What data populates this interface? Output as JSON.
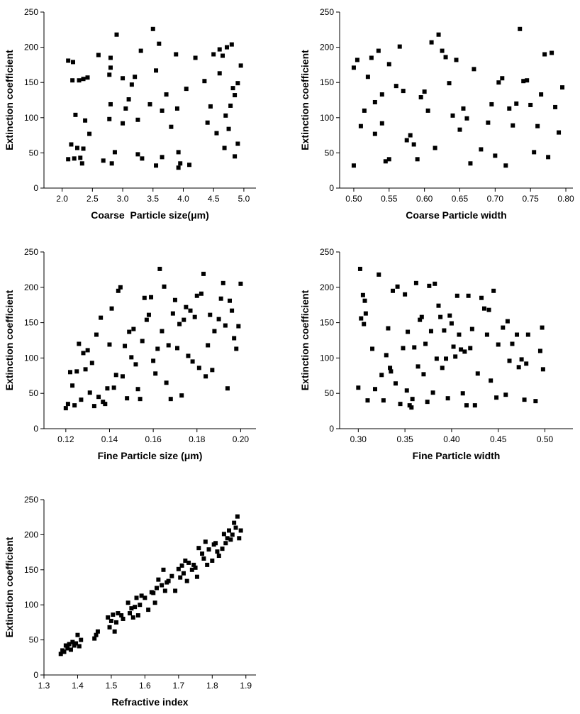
{
  "chart_data": [
    {
      "type": "scatter",
      "xlabel": "Coarse  Particle size(μm)",
      "ylabel": "Extinction coefficient",
      "color": "#000000",
      "xlim": [
        1.7,
        5.2
      ],
      "ylim": [
        0,
        250
      ],
      "xticks": [
        {
          "value": 2,
          "label": "2.0"
        },
        2.5,
        {
          "value": 3,
          "label": "3.0"
        },
        3.5,
        {
          "value": 4,
          "label": "4.0"
        },
        4.5,
        {
          "value": 5,
          "label": "5.0"
        }
      ],
      "yticks": [
        0,
        50,
        100,
        150,
        200,
        250
      ],
      "x": [
        2.1,
        2.1,
        2.15,
        2.17,
        2.18,
        2.2,
        2.22,
        2.25,
        2.28,
        2.3,
        2.33,
        2.35,
        2.35,
        2.38,
        2.42,
        2.45,
        2.6,
        2.68,
        2.78,
        2.78,
        2.8,
        2.8,
        2.8,
        2.82,
        2.87,
        2.9,
        3.0,
        3.0,
        3.05,
        3.1,
        3.15,
        3.2,
        3.25,
        3.25,
        3.3,
        3.32,
        3.45,
        3.5,
        3.55,
        3.55,
        3.6,
        3.65,
        3.65,
        3.72,
        3.8,
        3.88,
        3.9,
        3.92,
        3.92,
        3.95,
        4.05,
        4.1,
        4.2,
        4.35,
        4.4,
        4.45,
        4.5,
        4.55,
        4.6,
        4.6,
        4.65,
        4.68,
        4.7,
        4.72,
        4.75,
        4.78,
        4.8,
        4.82,
        4.85,
        4.85,
        4.9,
        4.9,
        4.95
      ],
      "values": [
        181,
        41,
        62,
        153,
        179,
        42,
        104,
        57,
        153,
        43,
        35,
        56,
        155,
        96,
        157,
        77,
        189,
        39,
        98,
        161,
        185,
        119,
        171,
        35,
        51,
        218,
        92,
        156,
        113,
        126,
        147,
        158,
        97,
        48,
        195,
        42,
        119,
        226,
        167,
        32,
        205,
        110,
        44,
        133,
        87,
        190,
        113,
        51,
        29,
        35,
        141,
        33,
        185,
        152,
        93,
        116,
        190,
        78,
        163,
        197,
        188,
        57,
        103,
        200,
        84,
        117,
        204,
        142,
        45,
        132,
        149,
        63,
        174
      ]
    },
    {
      "type": "scatter",
      "xlabel": "Coarse Particle width",
      "ylabel": "Extinction coefficient",
      "color": "#000000",
      "xlim": [
        0.48,
        0.81
      ],
      "ylim": [
        0,
        250
      ],
      "xticks": [
        {
          "value": 0.5,
          "label": "0.50"
        },
        0.55,
        {
          "value": 0.6,
          "label": "0.60"
        },
        0.65,
        {
          "value": 0.7,
          "label": "0.70"
        },
        0.75,
        {
          "value": 0.8,
          "label": "0.80"
        }
      ],
      "yticks": [
        0,
        50,
        100,
        150,
        200,
        250
      ],
      "x": [
        0.5,
        0.5,
        0.505,
        0.51,
        0.515,
        0.52,
        0.525,
        0.53,
        0.53,
        0.535,
        0.54,
        0.54,
        0.545,
        0.55,
        0.55,
        0.56,
        0.565,
        0.57,
        0.575,
        0.58,
        0.585,
        0.59,
        0.595,
        0.6,
        0.605,
        0.61,
        0.615,
        0.62,
        0.625,
        0.63,
        0.635,
        0.64,
        0.645,
        0.65,
        0.655,
        0.66,
        0.665,
        0.67,
        0.68,
        0.69,
        0.695,
        0.7,
        0.705,
        0.71,
        0.715,
        0.72,
        0.725,
        0.73,
        0.735,
        0.74,
        0.745,
        0.75,
        0.755,
        0.76,
        0.765,
        0.77,
        0.775,
        0.78,
        0.785,
        0.79,
        0.795
      ],
      "values": [
        32,
        171,
        182,
        88,
        110,
        158,
        185,
        122,
        77,
        195,
        92,
        133,
        38,
        176,
        41,
        145,
        201,
        138,
        68,
        75,
        62,
        41,
        129,
        137,
        110,
        207,
        57,
        218,
        195,
        186,
        149,
        103,
        182,
        83,
        113,
        99,
        35,
        169,
        55,
        93,
        119,
        46,
        150,
        156,
        32,
        113,
        89,
        120,
        226,
        152,
        153,
        118,
        51,
        88,
        133,
        190,
        44,
        192,
        115,
        79,
        143
      ]
    },
    {
      "type": "scatter",
      "xlabel": "Fine Particle size (μm)",
      "ylabel": "Extinction coefficient",
      "color": "#000000",
      "xlim": [
        0.11,
        0.207
      ],
      "ylim": [
        0,
        250
      ],
      "xticks": [
        0.12,
        0.14,
        0.16,
        0.18,
        {
          "value": 0.2,
          "label": "0.20"
        }
      ],
      "yticks": [
        0,
        50,
        100,
        150,
        200,
        250
      ],
      "x": [
        0.12,
        0.121,
        0.122,
        0.123,
        0.124,
        0.125,
        0.126,
        0.127,
        0.128,
        0.129,
        0.13,
        0.131,
        0.132,
        0.133,
        0.134,
        0.135,
        0.136,
        0.137,
        0.138,
        0.139,
        0.14,
        0.141,
        0.142,
        0.143,
        0.144,
        0.145,
        0.146,
        0.147,
        0.148,
        0.149,
        0.15,
        0.151,
        0.152,
        0.153,
        0.154,
        0.155,
        0.156,
        0.157,
        0.158,
        0.159,
        0.16,
        0.161,
        0.162,
        0.163,
        0.164,
        0.165,
        0.166,
        0.167,
        0.168,
        0.169,
        0.17,
        0.171,
        0.172,
        0.173,
        0.174,
        0.175,
        0.176,
        0.177,
        0.178,
        0.179,
        0.18,
        0.181,
        0.182,
        0.183,
        0.184,
        0.185,
        0.186,
        0.187,
        0.188,
        0.19,
        0.191,
        0.192,
        0.193,
        0.194,
        0.195,
        0.196,
        0.197,
        0.198,
        0.199,
        0.2
      ],
      "values": [
        29,
        35,
        80,
        61,
        33,
        81,
        120,
        41,
        107,
        84,
        111,
        51,
        93,
        32,
        133,
        45,
        157,
        38,
        35,
        57,
        119,
        170,
        58,
        76,
        195,
        200,
        74,
        117,
        43,
        137,
        101,
        141,
        91,
        56,
        42,
        124,
        185,
        154,
        161,
        186,
        96,
        78,
        113,
        226,
        138,
        201,
        65,
        118,
        42,
        163,
        182,
        114,
        148,
        47,
        154,
        172,
        103,
        167,
        95,
        158,
        188,
        86,
        191,
        219,
        74,
        118,
        161,
        83,
        138,
        155,
        184,
        206,
        146,
        57,
        181,
        167,
        128,
        113,
        145,
        205
      ]
    },
    {
      "type": "scatter",
      "xlabel": "Fine Particle width",
      "ylabel": "Extinction coefficient",
      "color": "#000000",
      "xlim": [
        0.28,
        0.53
      ],
      "ylim": [
        0,
        250
      ],
      "xticks": [
        {
          "value": 0.3,
          "label": "0.30"
        },
        0.35,
        {
          "value": 0.4,
          "label": "0.40"
        },
        0.45,
        {
          "value": 0.5,
          "label": "0.50"
        }
      ],
      "yticks": [
        0,
        50,
        100,
        150,
        200,
        250
      ],
      "x": [
        0.3,
        0.302,
        0.303,
        0.305,
        0.306,
        0.307,
        0.308,
        0.31,
        0.315,
        0.318,
        0.322,
        0.325,
        0.327,
        0.33,
        0.332,
        0.334,
        0.335,
        0.337,
        0.34,
        0.342,
        0.345,
        0.348,
        0.35,
        0.352,
        0.353,
        0.355,
        0.357,
        0.358,
        0.36,
        0.362,
        0.364,
        0.366,
        0.368,
        0.37,
        0.372,
        0.374,
        0.376,
        0.378,
        0.38,
        0.382,
        0.384,
        0.386,
        0.388,
        0.39,
        0.392,
        0.394,
        0.396,
        0.398,
        0.4,
        0.402,
        0.404,
        0.406,
        0.408,
        0.41,
        0.412,
        0.414,
        0.416,
        0.418,
        0.42,
        0.422,
        0.425,
        0.428,
        0.432,
        0.435,
        0.438,
        0.44,
        0.442,
        0.445,
        0.448,
        0.45,
        0.455,
        0.458,
        0.46,
        0.462,
        0.465,
        0.47,
        0.472,
        0.475,
        0.478,
        0.48,
        0.482,
        0.49,
        0.495,
        0.497,
        0.498
      ],
      "values": [
        58,
        226,
        156,
        189,
        148,
        181,
        163,
        40,
        113,
        56,
        218,
        76,
        40,
        104,
        142,
        86,
        81,
        195,
        64,
        201,
        35,
        114,
        190,
        54,
        137,
        33,
        30,
        42,
        115,
        206,
        88,
        154,
        158,
        77,
        120,
        38,
        202,
        138,
        51,
        205,
        99,
        174,
        158,
        86,
        139,
        99,
        43,
        160,
        149,
        116,
        102,
        188,
        133,
        112,
        50,
        109,
        33,
        188,
        114,
        141,
        33,
        78,
        185,
        170,
        133,
        168,
        68,
        195,
        44,
        119,
        143,
        48,
        152,
        96,
        120,
        133,
        87,
        98,
        41,
        92,
        133,
        39,
        110,
        143,
        84
      ]
    },
    {
      "type": "scatter",
      "xlabel": "Refractive index",
      "ylabel": "Extinction coefficient",
      "color": "#000000",
      "xlim": [
        1.3,
        1.93
      ],
      "ylim": [
        0,
        250
      ],
      "xticks": [
        1.3,
        1.4,
        1.5,
        1.6,
        1.7,
        1.8,
        1.9
      ],
      "yticks": [
        0,
        50,
        100,
        150,
        200,
        250
      ],
      "x": [
        1.35,
        1.355,
        1.36,
        1.365,
        1.37,
        1.375,
        1.38,
        1.385,
        1.39,
        1.395,
        1.4,
        1.405,
        1.41,
        1.45,
        1.455,
        1.46,
        1.49,
        1.495,
        1.5,
        1.505,
        1.51,
        1.515,
        1.52,
        1.53,
        1.535,
        1.55,
        1.555,
        1.56,
        1.565,
        1.57,
        1.575,
        1.58,
        1.585,
        1.59,
        1.6,
        1.61,
        1.62,
        1.625,
        1.63,
        1.635,
        1.64,
        1.65,
        1.655,
        1.66,
        1.665,
        1.67,
        1.68,
        1.69,
        1.7,
        1.705,
        1.71,
        1.715,
        1.72,
        1.725,
        1.73,
        1.74,
        1.745,
        1.75,
        1.755,
        1.76,
        1.77,
        1.775,
        1.78,
        1.785,
        1.79,
        1.8,
        1.805,
        1.81,
        1.815,
        1.82,
        1.83,
        1.835,
        1.84,
        1.845,
        1.85,
        1.855,
        1.86,
        1.865,
        1.87,
        1.875,
        1.88,
        1.885
      ],
      "values": [
        30,
        35,
        33,
        42,
        38,
        44,
        36,
        47,
        42,
        45,
        57,
        41,
        50,
        52,
        57,
        62,
        82,
        68,
        77,
        86,
        62,
        75,
        88,
        85,
        80,
        103,
        88,
        95,
        82,
        97,
        110,
        85,
        100,
        113,
        110,
        93,
        118,
        117,
        103,
        124,
        136,
        128,
        150,
        120,
        132,
        134,
        141,
        120,
        151,
        139,
        156,
        145,
        163,
        134,
        160,
        150,
        157,
        153,
        140,
        181,
        173,
        166,
        190,
        157,
        179,
        163,
        186,
        188,
        176,
        170,
        180,
        201,
        188,
        195,
        206,
        193,
        200,
        217,
        210,
        226,
        195,
        206
      ]
    }
  ]
}
